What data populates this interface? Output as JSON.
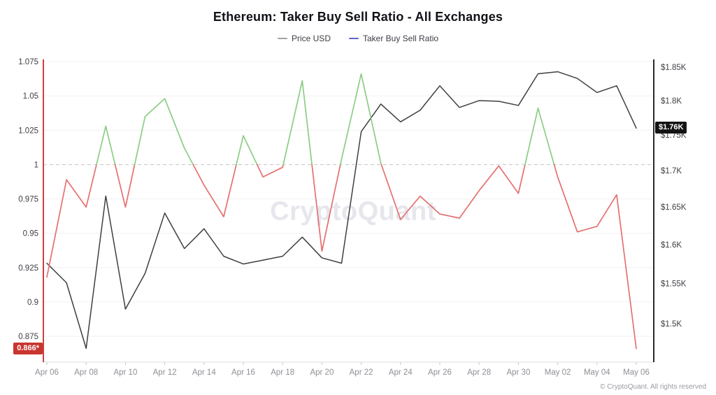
{
  "title": "Ethereum: Taker Buy Sell Ratio - All Exchanges",
  "legend": [
    {
      "label": "Price USD",
      "color": "#a0a0a6"
    },
    {
      "label": "Taker Buy Sell Ratio",
      "color": "#6163d0"
    }
  ],
  "watermark": "CryptoQuant",
  "footer": "© CryptoQuant. All rights reserved",
  "badges": {
    "ratio_last": "0.866*",
    "price_last": "$1.76K"
  },
  "chart_data": {
    "type": "line",
    "x": [
      "Apr 06",
      "Apr 07",
      "Apr 08",
      "Apr 09",
      "Apr 10",
      "Apr 11",
      "Apr 12",
      "Apr 13",
      "Apr 14",
      "Apr 15",
      "Apr 16",
      "Apr 17",
      "Apr 18",
      "Apr 19",
      "Apr 20",
      "Apr 21",
      "Apr 22",
      "Apr 23",
      "Apr 24",
      "Apr 25",
      "Apr 26",
      "Apr 27",
      "Apr 28",
      "Apr 29",
      "Apr 30",
      "May 01",
      "May 02",
      "May 03",
      "May 04",
      "May 05",
      "May 06"
    ],
    "x_tick_labels": [
      "Apr 06",
      "Apr 08",
      "Apr 10",
      "Apr 12",
      "Apr 14",
      "Apr 16",
      "Apr 18",
      "Apr 20",
      "Apr 22",
      "Apr 24",
      "Apr 26",
      "Apr 28",
      "Apr 30",
      "May 02",
      "May 04",
      "May 06"
    ],
    "series": [
      {
        "name": "Price USD",
        "axis": "right",
        "color": "#3f3f42",
        "values": [
          1576,
          1551,
          1470,
          1665,
          1518,
          1563,
          1642,
          1595,
          1621,
          1585,
          1575,
          1580,
          1585,
          1610,
          1583,
          1576,
          1755,
          1795,
          1769,
          1786,
          1822,
          1790,
          1800,
          1799,
          1793,
          1840,
          1843,
          1833,
          1812,
          1822,
          1760
        ]
      },
      {
        "name": "Taker Buy Sell Ratio",
        "axis": "left",
        "threshold": 1,
        "color_above": "#8bcd84",
        "color_below": "#e57070",
        "values": [
          0.918,
          0.989,
          0.969,
          1.028,
          0.969,
          1.035,
          1.048,
          1.012,
          0.985,
          0.962,
          1.021,
          0.991,
          0.998,
          1.061,
          0.937,
          1.004,
          1.066,
          1.001,
          0.96,
          0.977,
          0.964,
          0.961,
          0.981,
          0.999,
          0.979,
          1.041,
          0.991,
          0.951,
          0.955,
          0.978,
          0.866
        ]
      }
    ],
    "left_axis": {
      "ticks": [
        1.075,
        1.05,
        1.025,
        1,
        0.975,
        0.95,
        0.925,
        0.9,
        0.875
      ],
      "last_value": 0.866,
      "axis_color": "#ce3f3a",
      "label_color": "#3f3f46"
    },
    "right_axis": {
      "tick_labels": [
        "$1.85K",
        "$1.8K",
        "$1.75K",
        "$1.7K",
        "$1.65K",
        "$1.6K",
        "$1.55K",
        "$1.5K"
      ],
      "tick_values": [
        1850,
        1800,
        1750,
        1700,
        1650,
        1600,
        1550,
        1500
      ],
      "scale": "log",
      "last_value": 1760,
      "axis_color": "#2b2b2e",
      "label_color": "#3f3f46"
    },
    "reference_line": 1,
    "grid": true,
    "legend_position": "top"
  }
}
